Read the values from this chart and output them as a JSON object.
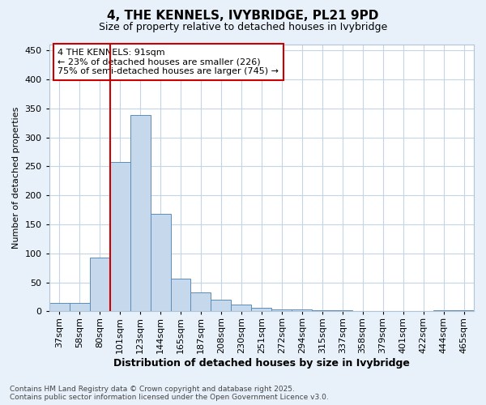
{
  "title": "4, THE KENNELS, IVYBRIDGE, PL21 9PD",
  "subtitle": "Size of property relative to detached houses in Ivybridge",
  "xlabel": "Distribution of detached houses by size in Ivybridge",
  "ylabel": "Number of detached properties",
  "categories": [
    "37sqm",
    "58sqm",
    "80sqm",
    "101sqm",
    "123sqm",
    "144sqm",
    "165sqm",
    "187sqm",
    "208sqm",
    "230sqm",
    "251sqm",
    "272sqm",
    "294sqm",
    "315sqm",
    "337sqm",
    "358sqm",
    "379sqm",
    "401sqm",
    "422sqm",
    "444sqm",
    "465sqm"
  ],
  "values": [
    15,
    15,
    93,
    258,
    338,
    168,
    57,
    33,
    20,
    12,
    6,
    3,
    3,
    2,
    2,
    1,
    1,
    1,
    1,
    2,
    2
  ],
  "bar_color": "#c5d8ec",
  "bar_edge_color": "#5b8db8",
  "vline_x_index": 3,
  "vline_color": "#cc0000",
  "ylim": [
    0,
    460
  ],
  "yticks": [
    0,
    50,
    100,
    150,
    200,
    250,
    300,
    350,
    400,
    450
  ],
  "annotation_text": "4 THE KENNELS: 91sqm\n← 23% of detached houses are smaller (226)\n75% of semi-detached houses are larger (745) →",
  "annotation_box_color": "#ffffff",
  "annotation_box_edge": "#cc0000",
  "footer": "Contains HM Land Registry data © Crown copyright and database right 2025.\nContains public sector information licensed under the Open Government Licence v3.0.",
  "background_color": "#e8f1fa",
  "plot_bg_color": "#ffffff",
  "grid_color": "#c5d5e5",
  "title_fontsize": 11,
  "subtitle_fontsize": 9,
  "axis_label_fontsize": 9,
  "tick_fontsize": 8,
  "ylabel_fontsize": 8
}
